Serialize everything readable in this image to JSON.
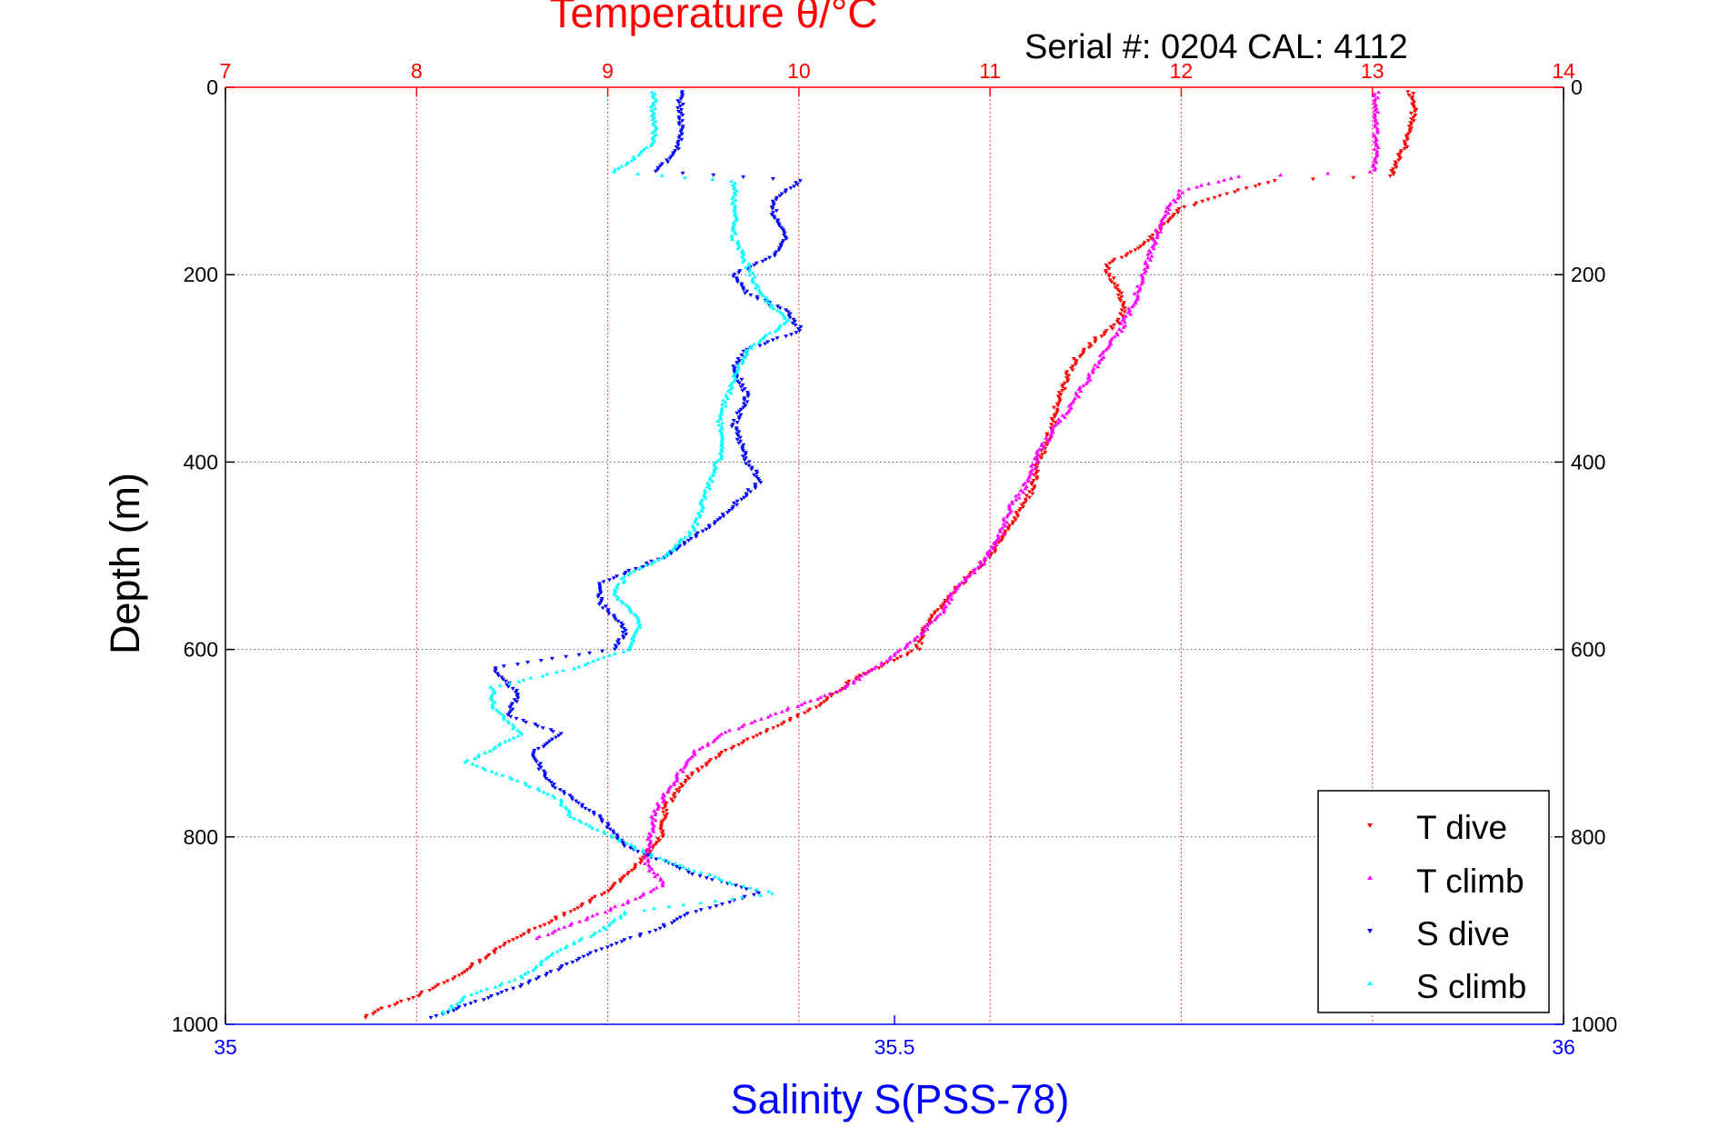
{
  "header": {
    "top_title": "Temperature θ/°C",
    "serial_label": "Serial #: 0204  CAL: 4112"
  },
  "axes": {
    "ylabel": "Depth (m)",
    "xlabel_bottom": "Salinity S(PSS-78)",
    "top_ticks": [
      "7",
      "8",
      "9",
      "10",
      "11",
      "12",
      "13",
      "14"
    ],
    "bottom_ticks": [
      "35",
      "35.5",
      "36"
    ],
    "left_ticks": [
      "0",
      "200",
      "400",
      "600",
      "800",
      "1000"
    ],
    "right_ticks": [
      "0",
      "200",
      "400",
      "600",
      "800",
      "1000"
    ]
  },
  "legend": {
    "items": [
      {
        "label": "T dive",
        "color": "#ff0000",
        "marker": "down-triangle"
      },
      {
        "label": "T climb",
        "color": "#ff00ff",
        "marker": "up-triangle"
      },
      {
        "label": "S dive",
        "color": "#0000ff",
        "marker": "down-triangle"
      },
      {
        "label": "S climb",
        "color": "#00ffff",
        "marker": "up-triangle"
      }
    ]
  },
  "chart_data": {
    "type": "scatter",
    "title": "Temperature θ/°C",
    "subtitle": "Serial #: 0204  CAL: 4112",
    "ylabel": "Depth (m)",
    "xlabel": "Salinity S(PSS-78)",
    "x_top_label": "Temperature θ/°C",
    "ylim": [
      0,
      1000
    ],
    "y_reversed": true,
    "x_top_lim": [
      7,
      14
    ],
    "x_bottom_lim": [
      35,
      36
    ],
    "grid": true,
    "legend_position": "bottom-right",
    "colors": {
      "top_axis": "#ff0000",
      "bottom_axis": "#0000ff"
    },
    "series": [
      {
        "name": "T dive",
        "axis": "top",
        "color": "#ff0000",
        "points": [
          [
            13.2,
            5
          ],
          [
            13.22,
            20
          ],
          [
            13.2,
            40
          ],
          [
            13.18,
            60
          ],
          [
            13.12,
            80
          ],
          [
            13.1,
            95
          ],
          [
            12.5,
            100
          ],
          [
            12.3,
            110
          ],
          [
            12.0,
            130
          ],
          [
            11.9,
            150
          ],
          [
            11.8,
            170
          ],
          [
            11.6,
            190
          ],
          [
            11.65,
            210
          ],
          [
            11.7,
            230
          ],
          [
            11.68,
            250
          ],
          [
            11.55,
            270
          ],
          [
            11.45,
            290
          ],
          [
            11.4,
            310
          ],
          [
            11.35,
            340
          ],
          [
            11.3,
            380
          ],
          [
            11.25,
            400
          ],
          [
            11.22,
            430
          ],
          [
            11.1,
            470
          ],
          [
            11.0,
            500
          ],
          [
            10.85,
            530
          ],
          [
            10.72,
            560
          ],
          [
            10.65,
            580
          ],
          [
            10.62,
            600
          ],
          [
            10.3,
            630
          ],
          [
            10.1,
            660
          ],
          [
            9.8,
            690
          ],
          [
            9.6,
            710
          ],
          [
            9.4,
            740
          ],
          [
            9.3,
            770
          ],
          [
            9.28,
            800
          ],
          [
            9.2,
            820
          ],
          [
            9.05,
            850
          ],
          [
            8.9,
            870
          ],
          [
            8.7,
            890
          ],
          [
            8.5,
            910
          ],
          [
            8.35,
            930
          ],
          [
            8.2,
            950
          ],
          [
            8.0,
            970
          ],
          [
            7.8,
            985
          ],
          [
            7.7,
            995
          ]
        ]
      },
      {
        "name": "T climb",
        "axis": "top",
        "color": "#ff00ff",
        "points": [
          [
            13.02,
            5
          ],
          [
            13.02,
            30
          ],
          [
            13.02,
            50
          ],
          [
            13.02,
            70
          ],
          [
            13.0,
            90
          ],
          [
            12.3,
            95
          ],
          [
            12.0,
            110
          ],
          [
            11.9,
            140
          ],
          [
            11.85,
            170
          ],
          [
            11.8,
            200
          ],
          [
            11.75,
            230
          ],
          [
            11.68,
            260
          ],
          [
            11.6,
            280
          ],
          [
            11.55,
            300
          ],
          [
            11.45,
            330
          ],
          [
            11.35,
            360
          ],
          [
            11.25,
            390
          ],
          [
            11.2,
            420
          ],
          [
            11.1,
            450
          ],
          [
            11.05,
            480
          ],
          [
            10.95,
            510
          ],
          [
            10.8,
            540
          ],
          [
            10.75,
            560
          ],
          [
            10.6,
            590
          ],
          [
            10.4,
            620
          ],
          [
            10.2,
            645
          ],
          [
            9.85,
            670
          ],
          [
            9.6,
            690
          ],
          [
            9.45,
            710
          ],
          [
            9.35,
            740
          ],
          [
            9.25,
            770
          ],
          [
            9.22,
            800
          ],
          [
            9.2,
            830
          ],
          [
            9.3,
            850
          ],
          [
            9.1,
            870
          ],
          [
            8.85,
            890
          ],
          [
            8.6,
            910
          ]
        ]
      },
      {
        "name": "S dive",
        "axis": "bottom",
        "color": "#0000ff",
        "points": [
          [
            35.34,
            5
          ],
          [
            35.34,
            30
          ],
          [
            35.34,
            60
          ],
          [
            35.33,
            80
          ],
          [
            35.32,
            90
          ],
          [
            35.43,
            100
          ],
          [
            35.41,
            120
          ],
          [
            35.41,
            140
          ],
          [
            35.42,
            160
          ],
          [
            35.41,
            180
          ],
          [
            35.38,
            200
          ],
          [
            35.39,
            220
          ],
          [
            35.42,
            240
          ],
          [
            35.43,
            260
          ],
          [
            35.39,
            280
          ],
          [
            35.38,
            300
          ],
          [
            35.39,
            330
          ],
          [
            35.38,
            360
          ],
          [
            35.39,
            400
          ],
          [
            35.4,
            420
          ],
          [
            35.37,
            460
          ],
          [
            35.33,
            500
          ],
          [
            35.28,
            530
          ],
          [
            35.28,
            550
          ],
          [
            35.3,
            580
          ],
          [
            35.29,
            600
          ],
          [
            35.2,
            620
          ],
          [
            35.22,
            650
          ],
          [
            35.21,
            670
          ],
          [
            35.25,
            690
          ],
          [
            35.23,
            710
          ],
          [
            35.24,
            740
          ],
          [
            35.28,
            780
          ],
          [
            35.3,
            810
          ],
          [
            35.35,
            840
          ],
          [
            35.4,
            860
          ],
          [
            35.35,
            880
          ],
          [
            35.32,
            900
          ],
          [
            35.28,
            920
          ],
          [
            35.25,
            940
          ],
          [
            35.22,
            960
          ],
          [
            35.18,
            980
          ],
          [
            35.15,
            995
          ]
        ]
      },
      {
        "name": "S climb",
        "axis": "bottom",
        "color": "#00ffff",
        "points": [
          [
            35.32,
            5
          ],
          [
            35.32,
            30
          ],
          [
            35.32,
            60
          ],
          [
            35.3,
            80
          ],
          [
            35.29,
            90
          ],
          [
            35.38,
            100
          ],
          [
            35.38,
            130
          ],
          [
            35.38,
            160
          ],
          [
            35.39,
            190
          ],
          [
            35.4,
            220
          ],
          [
            35.42,
            250
          ],
          [
            35.39,
            280
          ],
          [
            35.38,
            310
          ],
          [
            35.37,
            350
          ],
          [
            35.37,
            390
          ],
          [
            35.36,
            430
          ],
          [
            35.35,
            470
          ],
          [
            35.33,
            500
          ],
          [
            35.3,
            520
          ],
          [
            35.29,
            540
          ],
          [
            35.31,
            570
          ],
          [
            35.3,
            600
          ],
          [
            35.26,
            620
          ],
          [
            35.2,
            640
          ],
          [
            35.2,
            660
          ],
          [
            35.22,
            690
          ],
          [
            35.18,
            720
          ],
          [
            35.22,
            740
          ],
          [
            35.25,
            760
          ],
          [
            35.26,
            780
          ],
          [
            35.32,
            820
          ],
          [
            35.38,
            850
          ],
          [
            35.41,
            860
          ],
          [
            35.3,
            880
          ],
          [
            35.28,
            900
          ],
          [
            35.25,
            920
          ],
          [
            35.22,
            950
          ],
          [
            35.18,
            970
          ],
          [
            35.16,
            990
          ]
        ]
      }
    ]
  }
}
